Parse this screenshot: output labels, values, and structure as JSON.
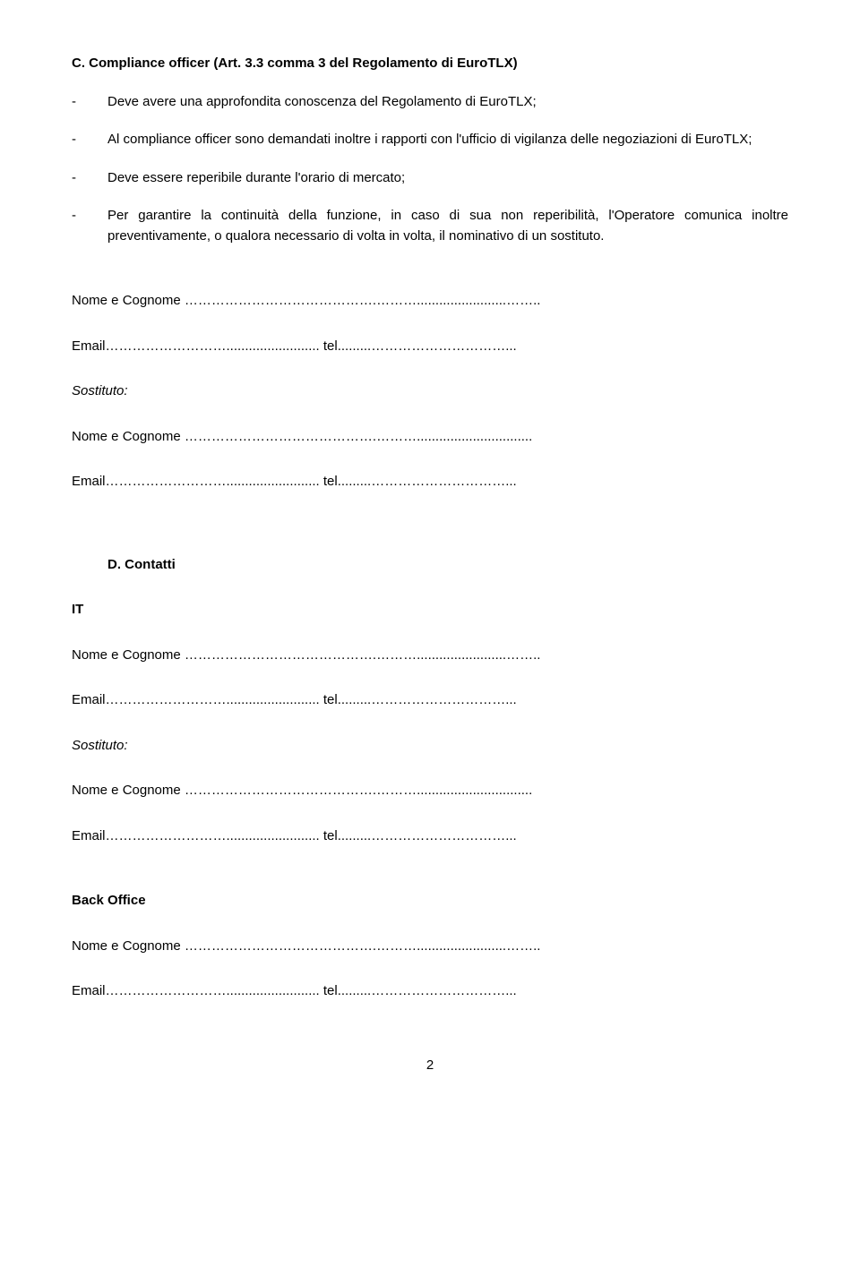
{
  "section_c": {
    "heading": "C.  Compliance officer (Art. 3.3 comma 3 del Regolamento di EuroTLX)",
    "bullets": [
      "Deve avere una approfondita conoscenza del Regolamento di EuroTLX;",
      "Al compliance officer sono demandati inoltre i rapporti con l'ufficio di vigilanza delle negoziazioni di EuroTLX;",
      "Deve essere reperibile durante l'orario di mercato;",
      "Per garantire la continuità della funzione, in caso di sua non reperibilità, l'Operatore comunica inoltre preventivamente, o qualora necessario di volta in volta, il nominativo di un sostituto."
    ]
  },
  "labels": {
    "dash": "-",
    "nome_cognome": "Nome e Cognome   …………………………………….………........................……..",
    "nome_cognome_alt": "Nome e Cognome   …………………………………….………...............................",
    "email_tel": "Email………………………......................... tel.........…………………………...",
    "sostituto": "Sostituto:"
  },
  "section_d": {
    "heading": "D.  Contatti",
    "it_label": "IT",
    "back_office_label": "Back Office"
  },
  "pagenum": "2"
}
